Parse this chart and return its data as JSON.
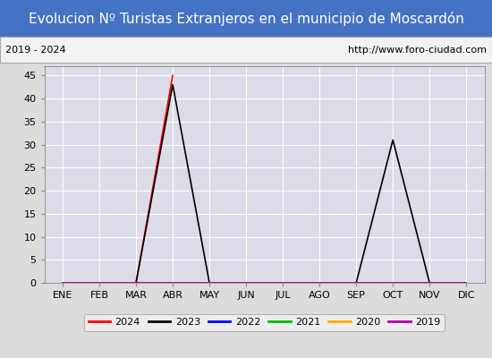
{
  "title": "Evolucion Nº Turistas Extranjeros en el municipio de Moscardón",
  "title_color": "#ffffff",
  "title_bg_color": "#4472c4",
  "subtitle_left": "2019 - 2024",
  "subtitle_right": "http://www.foro-ciudad.com",
  "subtitle_fontsize": 8,
  "x_labels": [
    "ENE",
    "FEB",
    "MAR",
    "ABR",
    "MAY",
    "JUN",
    "JUL",
    "AGO",
    "SEP",
    "OCT",
    "NOV",
    "DIC"
  ],
  "ylim": [
    0,
    47
  ],
  "yticks": [
    0,
    5,
    10,
    15,
    20,
    25,
    30,
    35,
    40,
    45
  ],
  "background_color": "#dcdcdc",
  "plot_bg_color": "#dcdce8",
  "grid_color": "#ffffff",
  "series": [
    {
      "label": "2024",
      "color": "#ff0000",
      "data": [
        0,
        0,
        0,
        45,
        null,
        null,
        null,
        null,
        null,
        null,
        null,
        null
      ]
    },
    {
      "label": "2023",
      "color": "#000000",
      "data": [
        0,
        0,
        0,
        43,
        0,
        0,
        0,
        0,
        0,
        31,
        0,
        0
      ]
    },
    {
      "label": "2022",
      "color": "#0000ff",
      "data": [
        0,
        0,
        0,
        0,
        0,
        0,
        0,
        0,
        0,
        0,
        0,
        0
      ]
    },
    {
      "label": "2021",
      "color": "#00bb00",
      "data": [
        0,
        0,
        0,
        0,
        0,
        0,
        0,
        0,
        0,
        0,
        0,
        0
      ]
    },
    {
      "label": "2020",
      "color": "#ffaa00",
      "data": [
        0,
        0,
        0,
        0,
        0,
        0,
        0,
        0,
        0,
        0,
        0,
        0
      ]
    },
    {
      "label": "2019",
      "color": "#aa00aa",
      "data": [
        0,
        0,
        0,
        0,
        0,
        0,
        0,
        0,
        0,
        0,
        0,
        0
      ]
    }
  ],
  "legend_fontsize": 8,
  "axis_fontsize": 8,
  "title_fontsize": 11
}
